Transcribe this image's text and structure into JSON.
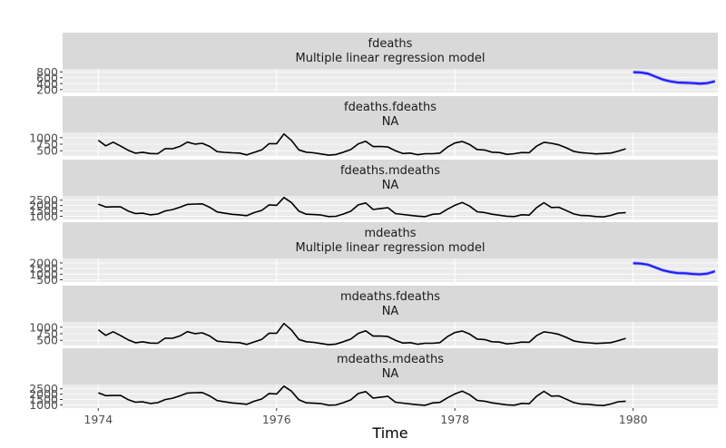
{
  "chart_data": {
    "type": "line",
    "xlabel": "Time",
    "x_ticks": [
      1974,
      1976,
      1978,
      1980
    ],
    "xlim": [
      1973.6,
      1980.95
    ],
    "forecast_color": "#1a1aff",
    "line_color": "#000000",
    "panels": [
      {
        "strip": [
          "fdeaths",
          "Multiple linear regression model"
        ],
        "y_ticks": [
          800,
          600,
          400,
          200
        ],
        "ylim": [
          100,
          900
        ],
        "series": [
          {
            "kind": "forecast",
            "x": [
              1980.0,
              1980.083,
              1980.167,
              1980.25,
              1980.333,
              1980.417,
              1980.5,
              1980.583,
              1980.667,
              1980.75,
              1980.833,
              1980.917
            ],
            "values": [
              790,
              780,
              740,
              640,
              540,
              480,
              440,
              430,
              420,
              400,
              420,
              480
            ],
            "lower": [
              730,
              720,
              680,
              580,
              480,
              420,
              380,
              370,
              360,
              340,
              360,
              420
            ],
            "upper": [
              850,
              840,
              800,
              700,
              600,
              540,
              500,
              490,
              480,
              460,
              480,
              540
            ]
          }
        ]
      },
      {
        "strip": [
          "fdeaths.fdeaths",
          "NA"
        ],
        "y_ticks": [
          1000,
          750,
          500
        ],
        "ylim": [
          300,
          1200
        ],
        "series": [
          {
            "kind": "line",
            "start": 1974,
            "step": 0.0833333,
            "values": [
              901,
              689,
              827,
              677,
              522,
              406,
              441,
              393,
              387,
              582,
              578,
              666,
              830,
              752,
              785,
              664,
              467,
              438,
              421,
              412,
              343,
              440,
              531,
              771,
              767,
              1141,
              896,
              532,
              447,
              420,
              376,
              330,
              357,
              445,
              546,
              764,
              862,
              660,
              663,
              643,
              502,
              392,
              411,
              348,
              387,
              385,
              411,
              638,
              796,
              853,
              737,
              546,
              530,
              446,
              431,
              362,
              387,
              430,
              425,
              679,
              821,
              785,
              727,
              612,
              478,
              429,
              405,
              379,
              393,
              411,
              487,
              574
            ]
          }
        ]
      },
      {
        "strip": [
          "fdeaths.mdeaths",
          "NA"
        ],
        "y_ticks": [
          2500,
          2000,
          1500,
          1000
        ],
        "ylim": [
          700,
          2900
        ],
        "series": [
          {
            "kind": "line",
            "start": 1974,
            "step": 0.0833333,
            "values": [
              2134,
              1863,
              1877,
              1877,
              1492,
              1249,
              1280,
              1131,
              1209,
              1492,
              1621,
              1846,
              2103,
              2137,
              2153,
              1833,
              1403,
              1288,
              1186,
              1133,
              1053,
              1347,
              1545,
              2066,
              2020,
              2750,
              2283,
              1479,
              1189,
              1160,
              1113,
              970,
              999,
              1208,
              1467,
              2059,
              2240,
              1634,
              1722,
              1801,
              1246,
              1162,
              1087,
              1013,
              959,
              1179,
              1229,
              1655,
              2019,
              2284,
              1942,
              1423,
              1340,
              1187,
              1098,
              1004,
              970,
              1140,
              1110,
              1812,
              2263,
              1820,
              1846,
              1531,
              1215,
              1075,
              1056,
              975,
              940,
              1081,
              1294,
              1341
            ]
          }
        ]
      },
      {
        "strip": [
          "mdeaths",
          "Multiple linear regression model"
        ],
        "y_ticks": [
          2000,
          1500,
          1000,
          500
        ],
        "ylim": [
          300,
          2400
        ],
        "series": [
          {
            "kind": "forecast",
            "x": [
              1980.0,
              1980.083,
              1980.167,
              1980.25,
              1980.333,
              1980.417,
              1980.5,
              1980.583,
              1980.667,
              1980.75,
              1980.833,
              1980.917
            ],
            "values": [
              1980,
              1950,
              1850,
              1600,
              1350,
              1200,
              1100,
              1080,
              1020,
              990,
              1050,
              1250
            ],
            "lower": [
              1830,
              1800,
              1700,
              1450,
              1200,
              1050,
              950,
              930,
              870,
              840,
              900,
              1100
            ],
            "upper": [
              2130,
              2100,
              2000,
              1750,
              1500,
              1350,
              1250,
              1230,
              1170,
              1140,
              1200,
              1400
            ]
          }
        ]
      },
      {
        "strip": [
          "mdeaths.fdeaths",
          "NA"
        ],
        "y_ticks": [
          1000,
          750,
          500
        ],
        "ylim": [
          300,
          1200
        ],
        "series": [
          {
            "kind": "line",
            "start": 1974,
            "step": 0.0833333,
            "values": [
              901,
              689,
              827,
              677,
              522,
              406,
              441,
              393,
              387,
              582,
              578,
              666,
              830,
              752,
              785,
              664,
              467,
              438,
              421,
              412,
              343,
              440,
              531,
              771,
              767,
              1141,
              896,
              532,
              447,
              420,
              376,
              330,
              357,
              445,
              546,
              764,
              862,
              660,
              663,
              643,
              502,
              392,
              411,
              348,
              387,
              385,
              411,
              638,
              796,
              853,
              737,
              546,
              530,
              446,
              431,
              362,
              387,
              430,
              425,
              679,
              821,
              785,
              727,
              612,
              478,
              429,
              405,
              379,
              393,
              411,
              487,
              574
            ]
          }
        ]
      },
      {
        "strip": [
          "mdeaths.mdeaths",
          "NA"
        ],
        "y_ticks": [
          2500,
          2000,
          1500,
          1000
        ],
        "ylim": [
          700,
          2900
        ],
        "series": [
          {
            "kind": "line",
            "start": 1974,
            "step": 0.0833333,
            "values": [
              2134,
              1863,
              1877,
              1877,
              1492,
              1249,
              1280,
              1131,
              1209,
              1492,
              1621,
              1846,
              2103,
              2137,
              2153,
              1833,
              1403,
              1288,
              1186,
              1133,
              1053,
              1347,
              1545,
              2066,
              2020,
              2750,
              2283,
              1479,
              1189,
              1160,
              1113,
              970,
              999,
              1208,
              1467,
              2059,
              2240,
              1634,
              1722,
              1801,
              1246,
              1162,
              1087,
              1013,
              959,
              1179,
              1229,
              1655,
              2019,
              2284,
              1942,
              1423,
              1340,
              1187,
              1098,
              1004,
              970,
              1140,
              1110,
              1812,
              2263,
              1820,
              1846,
              1531,
              1215,
              1075,
              1056,
              975,
              940,
              1081,
              1294,
              1341
            ]
          }
        ]
      }
    ]
  }
}
